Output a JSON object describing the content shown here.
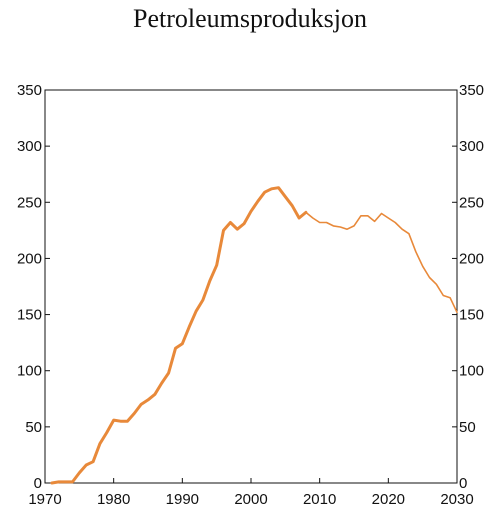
{
  "chart_data": {
    "type": "line",
    "title": "Petroleumsproduksjon",
    "xlabel": "",
    "ylabel": "",
    "xlim": [
      1970,
      2030
    ],
    "ylim": [
      0,
      350
    ],
    "x_ticks": [
      1970,
      1980,
      1990,
      2000,
      2010,
      2020,
      2030
    ],
    "y_ticks": [
      0,
      50,
      100,
      150,
      200,
      250,
      300,
      350
    ],
    "grid": false,
    "color": "#E8893A",
    "series": [
      {
        "style": "historical (thick line)",
        "x": [
          1971,
          1972,
          1973,
          1974,
          1975,
          1976,
          1977,
          1978,
          1979,
          1980,
          1981,
          1982,
          1983,
          1984,
          1985,
          1986,
          1987,
          1988,
          1989,
          1990,
          1991,
          1992,
          1993,
          1994,
          1995,
          1996,
          1997,
          1998,
          1999,
          2000,
          2001,
          2002,
          2003,
          2004,
          2005,
          2006,
          2007,
          2008
        ],
        "y": [
          0,
          1,
          1,
          1,
          9,
          16,
          19,
          35,
          45,
          56,
          55,
          55,
          62,
          70,
          74,
          79,
          89,
          98,
          120,
          124,
          139,
          153,
          163,
          180,
          194,
          225,
          232,
          226,
          231,
          242,
          251,
          259,
          262,
          263,
          255,
          247,
          236,
          241
        ]
      },
      {
        "style": "projection (thin line)",
        "x": [
          2008,
          2009,
          2010,
          2011,
          2012,
          2013,
          2014,
          2015,
          2016,
          2017,
          2018,
          2019,
          2020,
          2021,
          2022,
          2023,
          2024,
          2025,
          2026,
          2027,
          2028,
          2029,
          2030
        ],
        "y": [
          241,
          236,
          232,
          232,
          229,
          228,
          226,
          229,
          238,
          238,
          233,
          240,
          236,
          232,
          226,
          222,
          206,
          193,
          183,
          177,
          167,
          165,
          152
        ]
      }
    ]
  }
}
